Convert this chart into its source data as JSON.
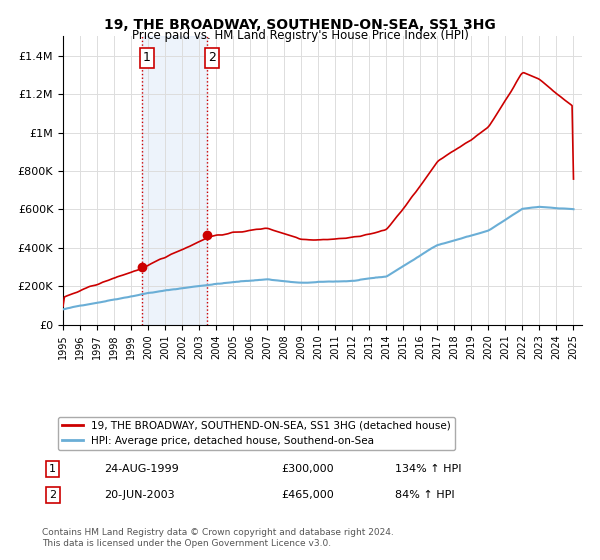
{
  "title": "19, THE BROADWAY, SOUTHEND-ON-SEA, SS1 3HG",
  "subtitle": "Price paid vs. HM Land Registry's House Price Index (HPI)",
  "legend_entry1": "19, THE BROADWAY, SOUTHEND-ON-SEA, SS1 3HG (detached house)",
  "legend_entry2": "HPI: Average price, detached house, Southend-on-Sea",
  "table_rows": [
    {
      "num": "1",
      "date": "24-AUG-1999",
      "price": "£300,000",
      "hpi": "134% ↑ HPI"
    },
    {
      "num": "2",
      "date": "20-JUN-2003",
      "price": "£465,000",
      "hpi": "84% ↑ HPI"
    }
  ],
  "footnote": "Contains HM Land Registry data © Crown copyright and database right 2024.\nThis data is licensed under the Open Government Licence v3.0.",
  "sale1_year": 1999.65,
  "sale1_price": 300000,
  "sale2_year": 2003.47,
  "sale2_price": 465000,
  "hpi_color": "#6aaed6",
  "price_color": "#cc0000",
  "shading_color": "#ccdff5",
  "background_color": "#ffffff",
  "grid_color": "#dddddd",
  "ylim": [
    0,
    1500000
  ],
  "xlim_start": 1995.0,
  "xlim_end": 2025.5
}
